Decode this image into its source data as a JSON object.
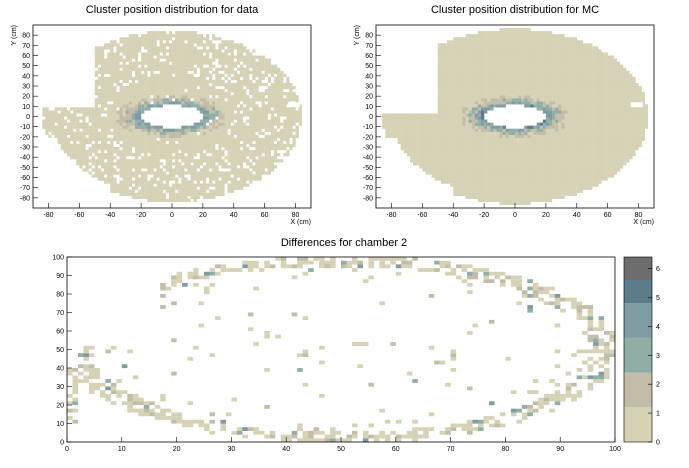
{
  "palette": [
    "#d6d2b6",
    "#c2bca8",
    "#90ada6",
    "#7f9ba4",
    "#5a7c8b",
    "#6d6d6d"
  ],
  "chart_data": [
    {
      "type": "heatmap",
      "title": "Cluster position distribution for data",
      "xlabel": "X (cm)",
      "ylabel": "Y (cm)",
      "xlim": [
        -90,
        90
      ],
      "ylim": [
        -90,
        90
      ],
      "xticks": [
        -80,
        -60,
        -40,
        -20,
        0,
        20,
        40,
        60,
        80
      ],
      "yticks": [
        -80,
        -70,
        -60,
        -50,
        -40,
        -30,
        -20,
        -10,
        0,
        10,
        20,
        30,
        40,
        50,
        60,
        70,
        80
      ],
      "hole_center": [
        0,
        0
      ],
      "hole_radius": [
        20,
        11
      ],
      "outer_radius": 84,
      "cut_region": {
        "x": [
          -90,
          -50
        ],
        "y": [
          8,
          90
        ]
      },
      "fill_fraction": 0.85
    },
    {
      "type": "heatmap",
      "title": "Cluster position distribution for MC",
      "xlabel": "X (cm)",
      "ylabel": "Y (cm)",
      "xlim": [
        -90,
        90
      ],
      "ylim": [
        -90,
        90
      ],
      "xticks": [
        -80,
        -60,
        -40,
        -20,
        0,
        20,
        40,
        60,
        80
      ],
      "yticks": [
        -80,
        -70,
        -60,
        -50,
        -40,
        -30,
        -20,
        -10,
        0,
        10,
        20,
        30,
        40,
        50,
        60,
        70,
        80
      ],
      "hole_center": [
        0,
        0
      ],
      "hole_radius": [
        20,
        11
      ],
      "outer_radius": 86,
      "cut_region": {
        "x": [
          -90,
          -50
        ],
        "y": [
          3,
          90
        ]
      },
      "fill_fraction": 1.0
    },
    {
      "type": "heatmap",
      "title": "Differences for chamber 2",
      "xlabel": "",
      "ylabel": "",
      "xlim": [
        0,
        100
      ],
      "ylim": [
        0,
        100
      ],
      "xticks": [
        0,
        10,
        20,
        30,
        40,
        50,
        60,
        70,
        80,
        90,
        100
      ],
      "yticks": [
        0,
        10,
        20,
        30,
        40,
        50,
        60,
        70,
        80,
        90,
        100
      ],
      "z_range": [
        0,
        6.4
      ],
      "colorbar_ticks": [
        0,
        1,
        2,
        3,
        4,
        5,
        6
      ]
    }
  ]
}
